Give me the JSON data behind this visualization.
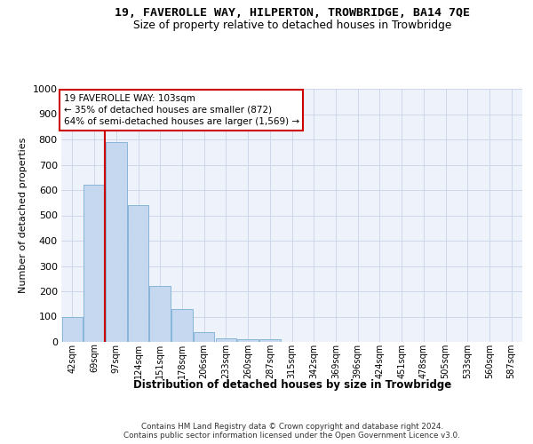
{
  "title1": "19, FAVEROLLE WAY, HILPERTON, TROWBRIDGE, BA14 7QE",
  "title2": "Size of property relative to detached houses in Trowbridge",
  "xlabel": "Distribution of detached houses by size in Trowbridge",
  "ylabel": "Number of detached properties",
  "bar_labels": [
    "42sqm",
    "69sqm",
    "97sqm",
    "124sqm",
    "151sqm",
    "178sqm",
    "206sqm",
    "233sqm",
    "260sqm",
    "287sqm",
    "315sqm",
    "342sqm",
    "369sqm",
    "396sqm",
    "424sqm",
    "451sqm",
    "478sqm",
    "505sqm",
    "533sqm",
    "560sqm",
    "587sqm"
  ],
  "bar_values": [
    100,
    620,
    790,
    540,
    220,
    130,
    40,
    15,
    10,
    10,
    0,
    0,
    0,
    0,
    0,
    0,
    0,
    0,
    0,
    0,
    0
  ],
  "bar_color": "#c5d8f0",
  "bar_edgecolor": "#7bafd4",
  "vline_color": "#cc0000",
  "vline_x_index": 2,
  "ylim": [
    0,
    1000
  ],
  "yticks": [
    0,
    100,
    200,
    300,
    400,
    500,
    600,
    700,
    800,
    900,
    1000
  ],
  "annotation_text": "19 FAVEROLLE WAY: 103sqm\n← 35% of detached houses are smaller (872)\n64% of semi-detached houses are larger (1,569) →",
  "annotation_box_edgecolor": "#cc0000",
  "footer1": "Contains HM Land Registry data © Crown copyright and database right 2024.",
  "footer2": "Contains public sector information licensed under the Open Government Licence v3.0.",
  "grid_color": "#c8d4e8",
  "background_color": "#eef2fa"
}
